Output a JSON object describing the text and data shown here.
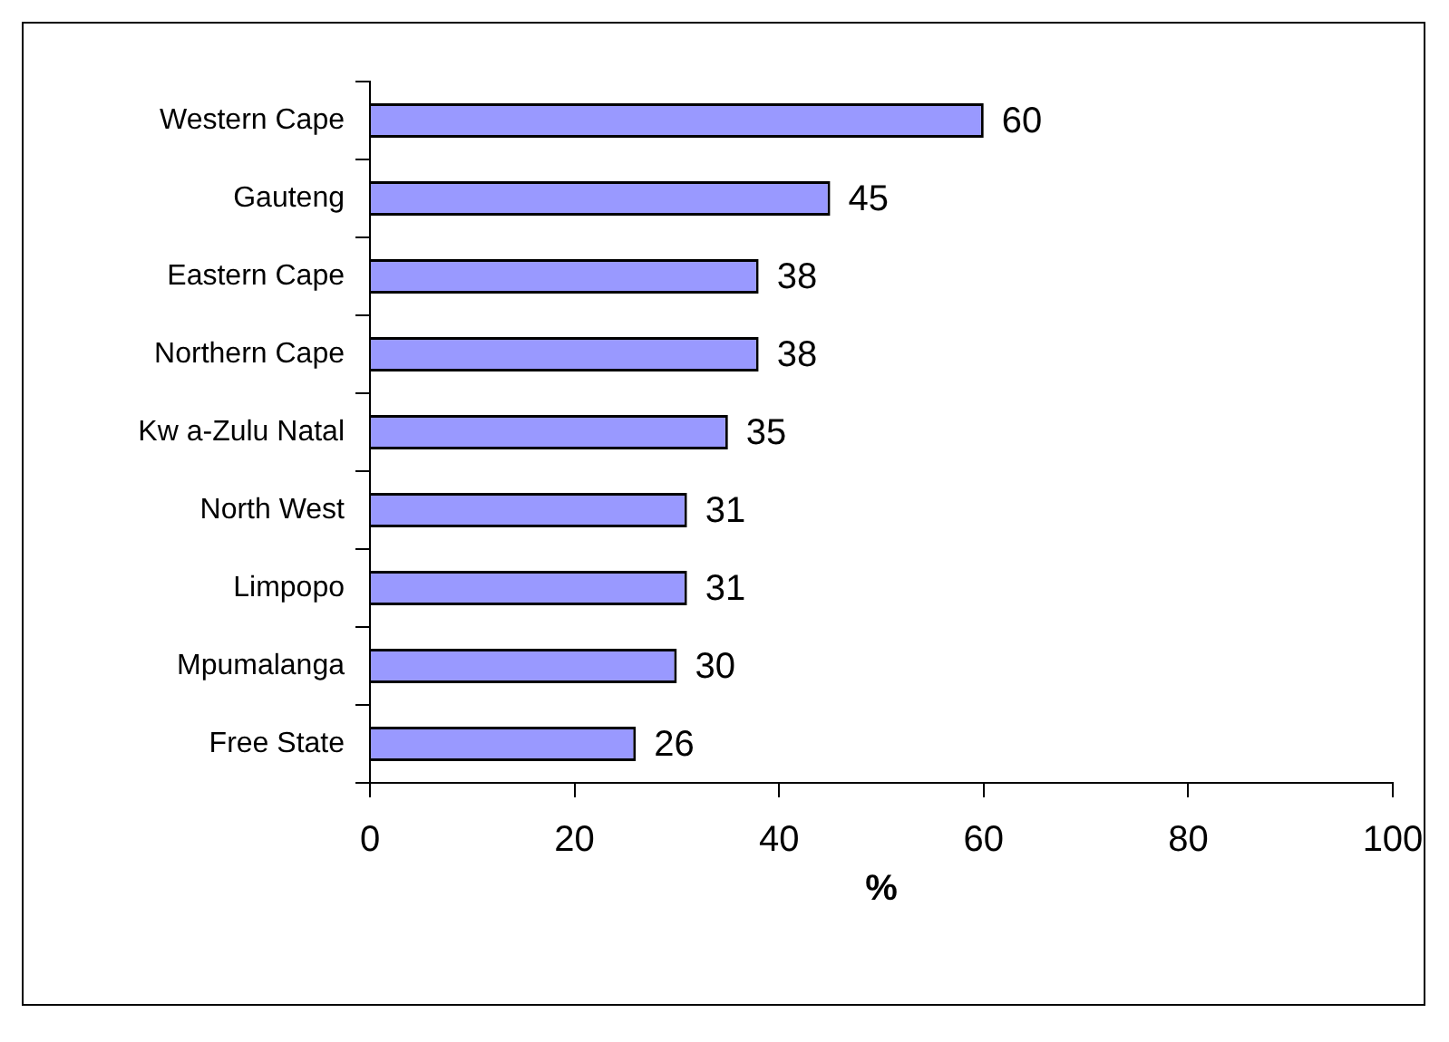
{
  "chart_data": {
    "type": "bar",
    "orientation": "horizontal",
    "xlabel": "%",
    "categories": [
      "Western Cape",
      "Gauteng",
      "Eastern Cape",
      "Northern Cape",
      "Kw a-Zulu Natal",
      "North West",
      "Limpopo",
      "Mpumalanga",
      "Free State"
    ],
    "values": [
      60,
      45,
      38,
      38,
      35,
      31,
      31,
      30,
      26
    ],
    "color": "#9999ff",
    "xlim": [
      0,
      100
    ],
    "xticks": [
      0,
      20,
      40,
      60,
      80,
      100
    ],
    "grid": false,
    "legend": false,
    "data_labels": true
  }
}
